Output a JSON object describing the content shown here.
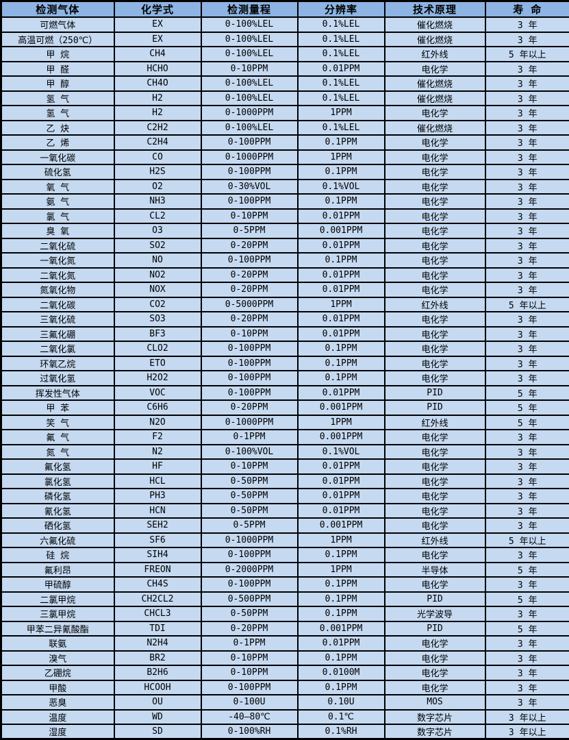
{
  "colors": {
    "header_bg": "#8DB4E2",
    "row_bg": "#C5D9F1",
    "border": "#000000",
    "text": "#000000"
  },
  "chart_data": {
    "type": "table",
    "title": "",
    "columns": [
      "检测气体",
      "化学式",
      "检测量程",
      "分辨率",
      "技术原理",
      "寿 命"
    ],
    "rows": [
      [
        "可燃气体",
        "EX",
        "0-100%LEL",
        "0.1%LEL",
        "催化燃烧",
        "3 年"
      ],
      [
        "高温可燃（250℃）",
        "EX",
        "0-100%LEL",
        "0.1%LEL",
        "催化燃烧",
        "3 年"
      ],
      [
        "甲 烷",
        "CH4",
        "0-100%LEL",
        "0.1%LEL",
        "红外线",
        "5 年以上"
      ],
      [
        "甲 醛",
        "HCHO",
        "0-10PPM",
        "0.01PPM",
        "电化学",
        "3 年"
      ],
      [
        "甲 醇",
        "CH4O",
        "0-100%LEL",
        "0.1%LEL",
        "催化燃烧",
        "3 年"
      ],
      [
        "氢 气",
        "H2",
        "0-100%LEL",
        "0.1%LEL",
        "催化燃烧",
        "3 年"
      ],
      [
        "氢 气",
        "H2",
        "0-1000PPM",
        "1PPM",
        "电化学",
        "3 年"
      ],
      [
        "乙 炔",
        "C2H2",
        "0-100%LEL",
        "0.1%LEL",
        "催化燃烧",
        "3 年"
      ],
      [
        "乙 烯",
        "C2H4",
        "0-100PPM",
        "0.1PPM",
        "电化学",
        "3 年"
      ],
      [
        "一氧化碳",
        "CO",
        "0-1000PPM",
        "1PPM",
        "电化学",
        "3 年"
      ],
      [
        "硫化氢",
        "H2S",
        "0-100PPM",
        "0.1PPM",
        "电化学",
        "3 年"
      ],
      [
        "氧 气",
        "O2",
        "0-30%VOL",
        "0.1%VOL",
        "电化学",
        "3 年"
      ],
      [
        "氨 气",
        "NH3",
        "0-100PPM",
        "0.1PPM",
        "电化学",
        "3 年"
      ],
      [
        "氯 气",
        "CL2",
        "0-10PPM",
        "0.01PPM",
        "电化学",
        "3 年"
      ],
      [
        "臭 氧",
        "O3",
        "0-5PPM",
        "0.001PPM",
        "电化学",
        "3 年"
      ],
      [
        "二氧化硫",
        "SO2",
        "0-20PPM",
        "0.01PPM",
        "电化学",
        "3 年"
      ],
      [
        "一氧化氮",
        "NO",
        "0-100PPM",
        "0.1PPM",
        "电化学",
        "3 年"
      ],
      [
        "二氧化氮",
        "NO2",
        "0-20PPM",
        "0.01PPM",
        "电化学",
        "3 年"
      ],
      [
        "氮氧化物",
        "NOX",
        "0-20PPM",
        "0.01PPM",
        "电化学",
        "3 年"
      ],
      [
        "二氧化碳",
        "CO2",
        "0-5000PPM",
        "1PPM",
        "红外线",
        "5 年以上"
      ],
      [
        "三氧化硫",
        "SO3",
        "0-20PPM",
        "0.01PPM",
        "电化学",
        "3 年"
      ],
      [
        "三氟化硼",
        "BF3",
        "0-10PPM",
        "0.01PPM",
        "电化学",
        "3 年"
      ],
      [
        "二氧化氯",
        "CLO2",
        "0-100PPM",
        "0.1PPM",
        "电化学",
        "3 年"
      ],
      [
        "环氧乙烷",
        "ETO",
        "0-100PPM",
        "0.1PPM",
        "电化学",
        "3 年"
      ],
      [
        "过氧化氢",
        "H2O2",
        "0-100PPM",
        "0.1PPM",
        "电化学",
        "3 年"
      ],
      [
        "挥发性气体",
        "VOC",
        "0-100PPM",
        "0.01PPM",
        "PID",
        "5 年"
      ],
      [
        "甲 苯",
        "C6H6",
        "0-20PPM",
        "0.001PPM",
        "PID",
        "5 年"
      ],
      [
        "笑 气",
        "N2O",
        "0-1000PPM",
        "1PPM",
        "红外线",
        "5 年"
      ],
      [
        "氟 气",
        "F2",
        "0-1PPM",
        "0.001PPM",
        "电化学",
        "3 年"
      ],
      [
        "氮 气",
        "N2",
        "0-100%VOL",
        "0.1%VOL",
        "电化学",
        "3 年"
      ],
      [
        "氟化氢",
        "HF",
        "0-10PPM",
        "0.01PPM",
        "电化学",
        "3 年"
      ],
      [
        "氯化氢",
        "HCL",
        "0-50PPM",
        "0.01PPM",
        "电化学",
        "3 年"
      ],
      [
        "磷化氢",
        "PH3",
        "0-50PPM",
        "0.01PPM",
        "电化学",
        "3 年"
      ],
      [
        "氰化氢",
        "HCN",
        "0-50PPM",
        "0.01PPM",
        "电化学",
        "3 年"
      ],
      [
        "硒化氢",
        "SEH2",
        "0-5PPM",
        "0.001PPM",
        "电化学",
        "3 年"
      ],
      [
        "六氟化硫",
        "SF6",
        "0-1000PPM",
        "1PPM",
        "红外线",
        "5 年以上"
      ],
      [
        "硅 烷",
        "SIH4",
        "0-100PPM",
        "0.1PPM",
        "电化学",
        "3 年"
      ],
      [
        "氟利昂",
        "FREON",
        "0-2000PPM",
        "1PPM",
        "半导体",
        "5 年"
      ],
      [
        "甲硫醇",
        "CH4S",
        "0-100PPM",
        "0.1PPM",
        "电化学",
        "3 年"
      ],
      [
        "二氯甲烷",
        "CH2CL2",
        "0-500PPM",
        "0.1PPM",
        "PID",
        "5 年"
      ],
      [
        "三氯甲烷",
        "CHCL3",
        "0-50PPM",
        "0.1PPM",
        "光学波导",
        "3 年"
      ],
      [
        "甲苯二异氰酸酯",
        "TDI",
        "0-20PPM",
        "0.001PPM",
        "PID",
        "5 年"
      ],
      [
        "联氨",
        "N2H4",
        "0-1PPM",
        "0.01PPM",
        "电化学",
        "3 年"
      ],
      [
        "溴气",
        "BR2",
        "0-10PPM",
        "0.1PPM",
        "电化学",
        "3 年"
      ],
      [
        "乙硼烷",
        "B2H6",
        "0-10PPM",
        "0.0100M",
        "电化学",
        "3 年"
      ],
      [
        "甲酸",
        "HCOOH",
        "0-100PPM",
        "0.1PPM",
        "电化学",
        "3 年"
      ],
      [
        "恶臭",
        "OU",
        "0-100U",
        "0.10U",
        "MOS",
        "3 年"
      ],
      [
        "温度",
        "WD",
        "-40—80℃",
        "0.1℃",
        "数字芯片",
        "3 年以上"
      ],
      [
        "湿度",
        "SD",
        "0-100%RH",
        "0.1%RH",
        "数字芯片",
        "3 年以上"
      ]
    ]
  }
}
